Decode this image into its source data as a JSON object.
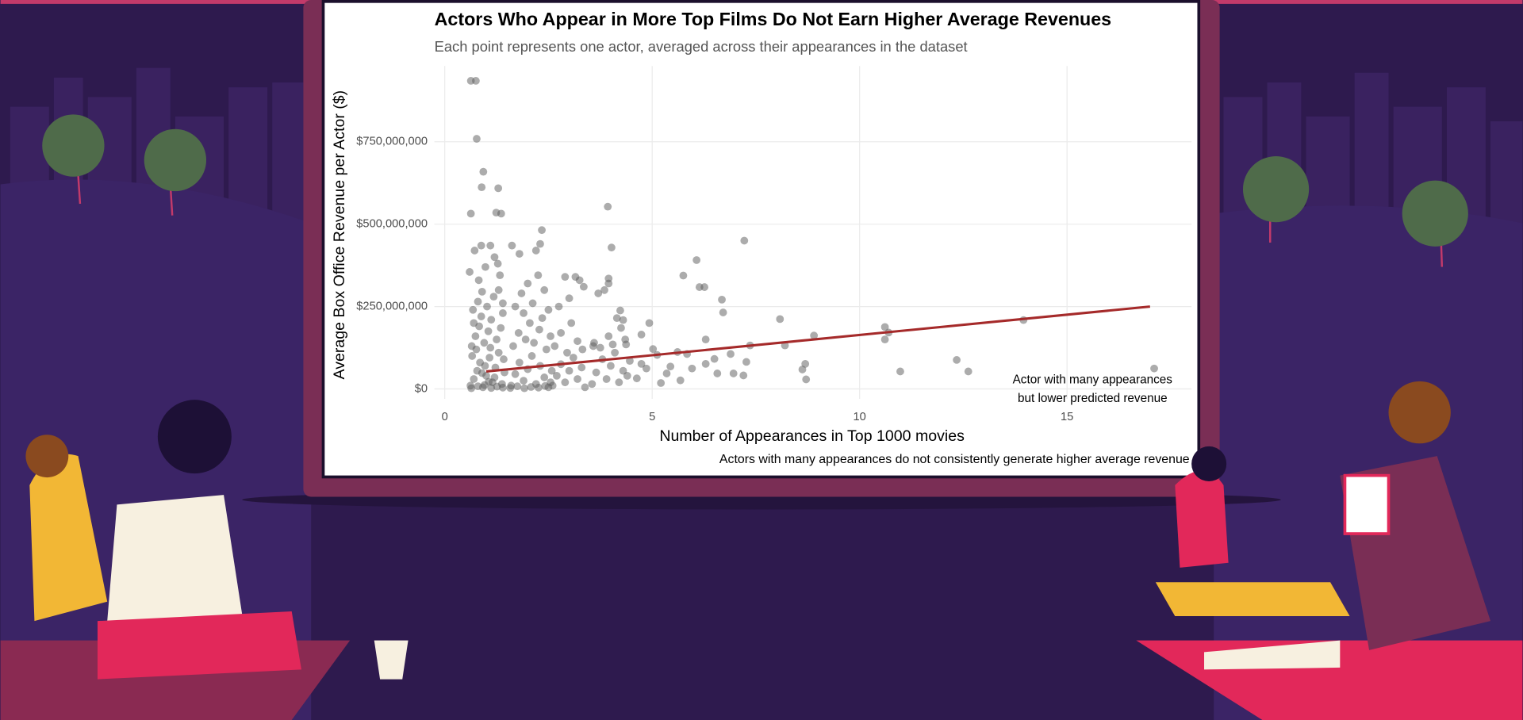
{
  "chart_data": {
    "type": "scatter",
    "title": "Actors Who Appear in More Top Films Do Not Earn Higher Average Revenues",
    "subtitle": "Each point represents one actor, averaged across their appearances in the dataset",
    "x_label": "Number of Appearances in Top 1000 movies",
    "y_label": "Average Box Office Revenue per Actor ($)",
    "caption": "Actors with many appearances do not consistently generate higher average revenue",
    "annotation": [
      "Actor with many appearances",
      "but lower predicted revenue"
    ],
    "color": "#595959",
    "grid": true,
    "xlim": [
      -0.25,
      18
    ],
    "ylim": [
      -30000000.0,
      980000000.0
    ],
    "xticks": [
      0,
      5,
      10,
      15
    ],
    "yticks": [
      {
        "value": 0,
        "label": "$0"
      },
      {
        "value": 250000000.0,
        "label": "$250,000,000"
      },
      {
        "value": 500000000.0,
        "label": "$500,000,000"
      },
      {
        "value": 750000000.0,
        "label": "$750,000,000"
      }
    ],
    "trend_line": {
      "color": "#a52a2a",
      "x": [
        1.0,
        17.0
      ],
      "values": [
        53000000.0,
        250000000.0
      ]
    },
    "x": [
      0.63,
      0.75,
      0.77,
      0.93,
      0.89,
      1.29,
      0.63,
      1.24,
      1.36,
      3.93,
      2.34,
      4.02,
      7.22,
      6.07,
      6.14,
      6.26,
      5.75,
      6.68,
      6.71,
      8.08,
      8.9,
      8.2,
      7.36,
      10.61,
      10.7,
      10.61,
      10.98,
      12.34,
      12.62,
      13.95,
      17.1,
      8.69,
      8.62,
      8.71,
      7.2,
      7.27,
      4.23,
      4.3,
      4.74,
      4.93,
      5.02,
      4.74,
      4.63,
      5.21,
      5.35,
      5.61,
      5.84,
      5.96,
      6.29,
      6.29,
      6.5,
      6.89,
      6.96,
      6.57,
      5.68,
      5.44,
      4.86,
      5.12,
      4.37,
      4.46,
      0.62,
      0.7,
      0.78,
      0.85,
      0.92,
      1.0,
      1.08,
      1.15,
      1.22,
      1.3,
      1.38,
      1.44,
      0.65,
      0.74,
      0.83,
      0.95,
      1.05,
      1.12,
      1.25,
      1.35,
      0.68,
      0.8,
      0.9,
      1.02,
      1.18,
      1.3,
      1.4,
      0.6,
      0.72,
      0.88,
      0.98,
      1.1,
      1.2,
      1.28,
      0.82,
      1.33,
      0.66,
      0.76,
      0.97,
      1.1,
      1.2,
      1.42,
      0.88,
      0.7,
      1.4,
      1.6,
      1.7,
      1.8,
      1.9,
      2.0,
      2.1,
      2.2,
      2.3,
      2.4,
      2.5,
      2.58,
      1.65,
      1.78,
      1.95,
      2.05,
      2.15,
      2.28,
      2.45,
      2.55,
      1.7,
      1.85,
      2.0,
      2.12,
      2.25,
      2.4,
      1.62,
      1.8,
      2.2,
      2.3,
      2.5,
      1.9,
      2.35,
      2.6,
      2.7,
      2.8,
      2.9,
      3.0,
      3.1,
      3.2,
      3.3,
      3.38,
      2.65,
      2.8,
      2.95,
      3.05,
      3.2,
      3.32,
      2.75,
      3.0,
      3.25,
      3.35,
      2.9,
      3.15,
      3.55,
      3.65,
      3.8,
      3.9,
      4.0,
      4.1,
      4.2,
      4.3,
      4.4,
      3.6,
      3.75,
      3.95,
      4.05,
      4.25,
      4.35,
      3.7,
      3.85,
      3.95,
      3.95,
      4.15,
      3.58,
      0.64,
      0.8,
      0.96,
      1.12,
      1.26,
      1.4,
      0.9,
      1.06,
      1.58,
      1.75,
      1.92,
      2.08,
      2.26,
      2.42,
      2.55
    ],
    "values": [
      935000000.0,
      935000000.0,
      759000000.0,
      659000000.0,
      612000000.0,
      609000000.0,
      532000000.0,
      535000000.0,
      532000000.0,
      553000000.0,
      482000000.0,
      429000000.0,
      450000000.0,
      391000000.0,
      309000000.0,
      309000000.0,
      344000000.0,
      271000000.0,
      232000000.0,
      212000000.0,
      162000000.0,
      132000000.0,
      132000000.0,
      188000000.0,
      171000000.0,
      150000000.0,
      53000000.0,
      88000000.0,
      53000000.0,
      209000000.0,
      62000000.0,
      76000000.0,
      59000000.0,
      29000000.0,
      41000000.0,
      82000000.0,
      238000000.0,
      209000000.0,
      165000000.0,
      200000000.0,
      121000000.0,
      76000000.0,
      32000000.0,
      18000000.0,
      47000000.0,
      112000000.0,
      106000000.0,
      62000000.0,
      76000000.0,
      150000000.0,
      91000000.0,
      106000000.0,
      47000000.0,
      47000000.0,
      26000000.0,
      68000000.0,
      62000000.0,
      103000000.0,
      135000000.0,
      85000000.0,
      10000000.0,
      30000000.0,
      55000000.0,
      80000000.0,
      5000000.0,
      40000000.0,
      95000000.0,
      20000000.0,
      65000000.0,
      110000000.0,
      15000000.0,
      50000000.0,
      130000000.0,
      160000000.0,
      190000000.0,
      140000000.0,
      175000000.0,
      210000000.0,
      150000000.0,
      185000000.0,
      240000000.0,
      265000000.0,
      295000000.0,
      250000000.0,
      280000000.0,
      300000000.0,
      260000000.0,
      355000000.0,
      420000000.0,
      435000000.0,
      370000000.0,
      435000000.0,
      400000000.0,
      380000000.0,
      330000000.0,
      345000000.0,
      100000000.0,
      120000000.0,
      70000000.0,
      125000000.0,
      35000000.0,
      90000000.0,
      220000000.0,
      200000000.0,
      230000000.0,
      10000000.0,
      45000000.0,
      80000000.0,
      25000000.0,
      60000000.0,
      100000000.0,
      15000000.0,
      70000000.0,
      35000000.0,
      5000000.0,
      55000000.0,
      130000000.0,
      170000000.0,
      150000000.0,
      200000000.0,
      140000000.0,
      180000000.0,
      120000000.0,
      160000000.0,
      250000000.0,
      290000000.0,
      320000000.0,
      260000000.0,
      345000000.0,
      300000000.0,
      435000000.0,
      410000000.0,
      420000000.0,
      440000000.0,
      240000000.0,
      230000000.0,
      215000000.0,
      10000000.0,
      40000000.0,
      75000000.0,
      20000000.0,
      55000000.0,
      95000000.0,
      30000000.0,
      65000000.0,
      5000000.0,
      130000000.0,
      170000000.0,
      110000000.0,
      200000000.0,
      145000000.0,
      120000000.0,
      250000000.0,
      275000000.0,
      330000000.0,
      310000000.0,
      340000000.0,
      340000000.0,
      15000000.0,
      50000000.0,
      90000000.0,
      30000000.0,
      70000000.0,
      110000000.0,
      20000000.0,
      55000000.0,
      40000000.0,
      140000000.0,
      125000000.0,
      160000000.0,
      135000000.0,
      185000000.0,
      150000000.0,
      290000000.0,
      300000000.0,
      335000000.0,
      320000000.0,
      215000000.0,
      130000000.0,
      2000000.0,
      8000000.0,
      12000000.0,
      3000000.0,
      7000000.0,
      4000000.0,
      48000000.0,
      22000000.0,
      3000000.0,
      8000000.0,
      2000000.0,
      6000000.0,
      4000000.0,
      9000000.0,
      20000000.0
    ]
  }
}
